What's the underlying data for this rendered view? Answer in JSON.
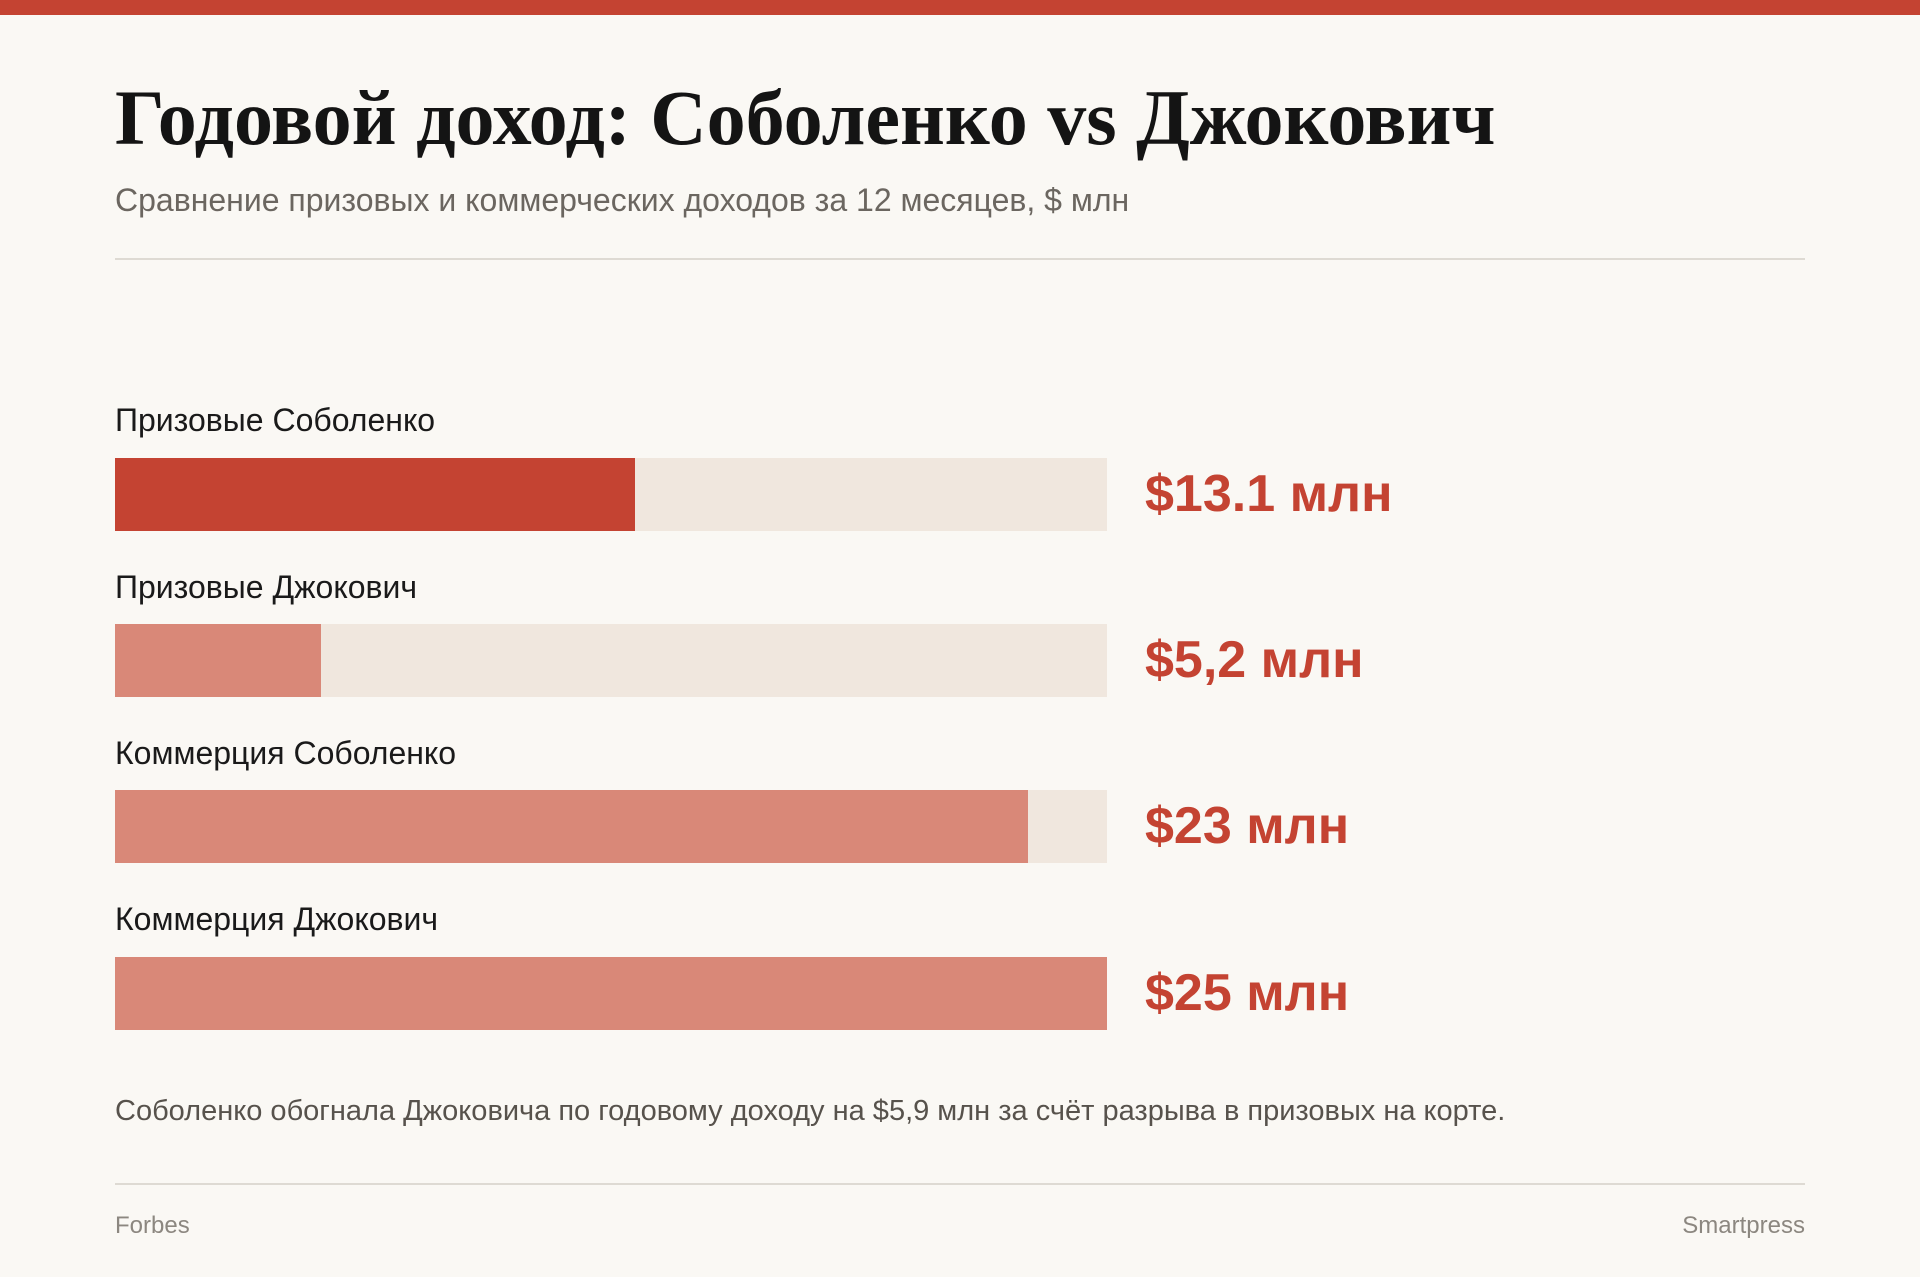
{
  "header": {
    "title": "Годовой доход: Соболенко vs Джокович",
    "subtitle": "Сравнение призовых и коммерческих доходов за 12 месяцев, $ млн"
  },
  "chart_data": {
    "type": "bar",
    "orientation": "horizontal",
    "title": "Годовой доход: Соболенко vs Джокович",
    "subtitle": "Сравнение призовых и коммерческих доходов за 12 месяцев, $ млн",
    "categories": [
      "Призовые Соболенко",
      "Призовые Джокович",
      "Коммерция Соболенко",
      "Коммерция Джокович"
    ],
    "values": [
      13.1,
      5.2,
      23,
      25
    ],
    "value_labels": [
      "$13.1 млн",
      "$5,2 млн",
      "$23 млн",
      "$25 млн"
    ],
    "xlim": [
      0,
      25
    ],
    "grid": false,
    "highlighted_index": 0,
    "colors": {
      "highlight": "#c44332",
      "bar": "#d98878",
      "track": "#f0e7de"
    }
  },
  "note": "Соболенко обогнала Джоковича по годовому доходу на $5,9 млн за счёт разрыва в призовых на корте.",
  "footer": {
    "source": "Forbes",
    "credit": "Smartpress"
  }
}
